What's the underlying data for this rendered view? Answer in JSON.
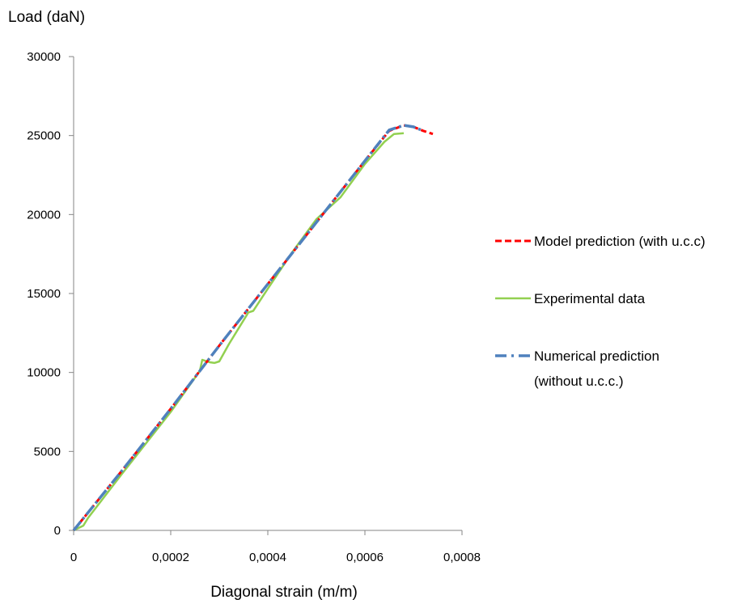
{
  "chart_data": {
    "type": "line",
    "title": "",
    "xlabel": "Diagonal strain (m/m)",
    "ylabel": "Load (daN)",
    "xlim": [
      0,
      0.0008
    ],
    "ylim": [
      0,
      30000
    ],
    "x_ticks": [
      0,
      0.0002,
      0.0004,
      0.0006,
      0.0008
    ],
    "x_tick_labels": [
      "0",
      "0,0002",
      "0,0004",
      "0,0006",
      "0,0008"
    ],
    "y_ticks": [
      0,
      5000,
      10000,
      15000,
      20000,
      25000,
      30000
    ],
    "y_tick_labels": [
      "0",
      "5000",
      "10000",
      "15000",
      "20000",
      "25000",
      "30000"
    ],
    "grid": false,
    "legend_position": "right",
    "series": [
      {
        "name": "Model prediction (with u.c.c)",
        "color": "#ff0000",
        "style": "dashed",
        "points": [
          [
            0,
            0
          ],
          [
            0.0001,
            3800
          ],
          [
            0.0002,
            7700
          ],
          [
            0.0003,
            11700
          ],
          [
            0.0004,
            15600
          ],
          [
            0.0005,
            19500
          ],
          [
            0.0006,
            23400
          ],
          [
            0.00065,
            25300
          ],
          [
            0.00068,
            25650
          ],
          [
            0.0007,
            25550
          ],
          [
            0.00072,
            25300
          ],
          [
            0.00074,
            25100
          ]
        ]
      },
      {
        "name": "Experimental data",
        "color": "#92d050",
        "style": "solid",
        "points": [
          [
            0,
            0
          ],
          [
            2e-05,
            300
          ],
          [
            3e-05,
            800
          ],
          [
            0.0001,
            3600
          ],
          [
            0.0002,
            7500
          ],
          [
            0.00026,
            10100
          ],
          [
            0.000265,
            10800
          ],
          [
            0.00028,
            10650
          ],
          [
            0.00029,
            10600
          ],
          [
            0.0003,
            10700
          ],
          [
            0.00032,
            11800
          ],
          [
            0.00035,
            13300
          ],
          [
            0.00036,
            13800
          ],
          [
            0.00037,
            13900
          ],
          [
            0.0004,
            15300
          ],
          [
            0.00045,
            17600
          ],
          [
            0.0005,
            19700
          ],
          [
            0.00055,
            21100
          ],
          [
            0.0006,
            23200
          ],
          [
            0.00064,
            24600
          ],
          [
            0.00066,
            25100
          ],
          [
            0.00068,
            25150
          ]
        ]
      },
      {
        "name": "Numerical prediction (without u.c.c.)",
        "legend_lines": [
          "Numerical prediction",
          "(without u.c.c.)"
        ],
        "color": "#4f81bd",
        "style": "dashdot",
        "points": [
          [
            0,
            0
          ],
          [
            0.0001,
            3800
          ],
          [
            0.0002,
            7700
          ],
          [
            0.0003,
            11700
          ],
          [
            0.0004,
            15600
          ],
          [
            0.0005,
            19500
          ],
          [
            0.0006,
            23400
          ],
          [
            0.00065,
            25350
          ],
          [
            0.00068,
            25650
          ],
          [
            0.0007,
            25550
          ],
          [
            0.00072,
            25300
          ]
        ]
      }
    ]
  }
}
